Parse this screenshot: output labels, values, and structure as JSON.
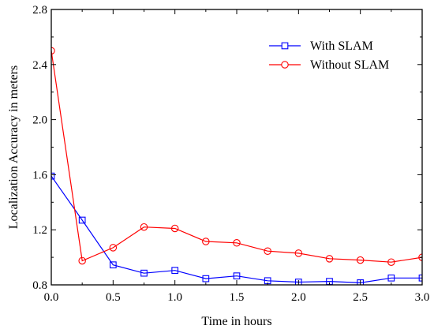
{
  "chart_data": {
    "type": "line",
    "title": "",
    "xlabel": "Time in hours",
    "ylabel": "Localization Accuracy in meters",
    "xlim": [
      0.0,
      3.0
    ],
    "ylim": [
      0.8,
      2.8
    ],
    "x_ticks": [
      "0.0",
      "0.5",
      "1.0",
      "1.5",
      "2.0",
      "2.5",
      "3.0"
    ],
    "y_ticks": [
      "0.8",
      "1.2",
      "1.6",
      "2.0",
      "2.4",
      "2.8"
    ],
    "grid": false,
    "legend_position": "top-right",
    "x": [
      0.0,
      0.25,
      0.5,
      0.75,
      1.0,
      1.25,
      1.5,
      1.75,
      2.0,
      2.25,
      2.5,
      2.75,
      3.0
    ],
    "series": [
      {
        "name": "With SLAM",
        "color": "#0000ff",
        "marker": "square",
        "values": [
          1.59,
          1.27,
          0.945,
          0.885,
          0.905,
          0.845,
          0.865,
          0.83,
          0.82,
          0.825,
          0.815,
          0.85,
          0.85
        ]
      },
      {
        "name": "Without SLAM",
        "color": "#ff0000",
        "marker": "circle",
        "values": [
          2.5,
          0.975,
          1.07,
          1.22,
          1.21,
          1.115,
          1.105,
          1.045,
          1.03,
          0.99,
          0.98,
          0.965,
          1.0
        ]
      }
    ]
  }
}
